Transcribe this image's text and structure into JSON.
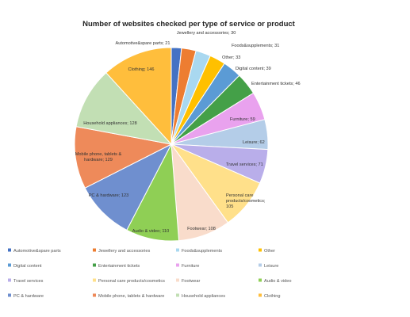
{
  "chart_data": {
    "type": "pie",
    "title": "Number of websites checked per type of service or product",
    "legend_position": "bottom",
    "slices": [
      {
        "name": "Automotive&spare parts",
        "value": 21,
        "label": "Automotive&spare parts; 21",
        "color": "#4472c4"
      },
      {
        "name": "Jewellery and accessories",
        "value": 30,
        "label": "Jewellery and accessories; 30",
        "color": "#ed7d31"
      },
      {
        "name": "Foods&supplements",
        "value": 31,
        "label": "Foods&supplements; 31",
        "color": "#a9d8f0"
      },
      {
        "name": "Other",
        "value": 33,
        "label": "Other; 33",
        "color": "#ffc000"
      },
      {
        "name": "Digital content",
        "value": 39,
        "label": "Digital content; 39",
        "color": "#5b9bd5"
      },
      {
        "name": "Entertainment tickets",
        "value": 46,
        "label": "Entertainment tickets; 46",
        "color": "#44a048"
      },
      {
        "name": "Furniture",
        "value": 59,
        "label": "Furniture; 59",
        "color": "#e9a2ee"
      },
      {
        "name": "Leisure",
        "value": 62,
        "label": "Leisure; 62",
        "color": "#b4cde8"
      },
      {
        "name": "Travel services",
        "value": 71,
        "label": "Travel services; 71",
        "color": "#b9aeea"
      },
      {
        "name": "Personal care products/cosmetics",
        "value": 105,
        "label": "Personal care products/cosmetics; 105",
        "color": "#ffe08a"
      },
      {
        "name": "Footwear",
        "value": 108,
        "label": "Footwear; 108",
        "color": "#f9dccb"
      },
      {
        "name": "Audio & video",
        "value": 110,
        "label": "Audio & video; 110",
        "color": "#8fcf55"
      },
      {
        "name": "PC & hardware",
        "value": 123,
        "label": "PC & hardware; 123",
        "color": "#6f8fcf"
      },
      {
        "name": "Mobile phone, tablets & hardware",
        "value": 129,
        "label": "Mobile phone, tablets & hardware; 129",
        "color": "#ee8a5a"
      },
      {
        "name": "Household appliances",
        "value": 128,
        "label": "Household appliances; 128",
        "color": "#c2dfb4"
      },
      {
        "name": "Clothing",
        "value": 146,
        "label": "Clothing; 146",
        "color": "#ffbe3c"
      }
    ],
    "legend_order": [
      "Automotive&spare parts",
      "Jewellery and accessories",
      "Foods&supplements",
      "Other",
      "Digital content",
      "Entertainment tickets",
      "Furniture",
      "Leisure",
      "Travel services",
      "Personal care products/cosmetics",
      "Footwear",
      "Audio & video",
      "PC & hardware",
      "Mobile phone, tablets & hardware",
      "Household appliances",
      "Clothing"
    ]
  }
}
